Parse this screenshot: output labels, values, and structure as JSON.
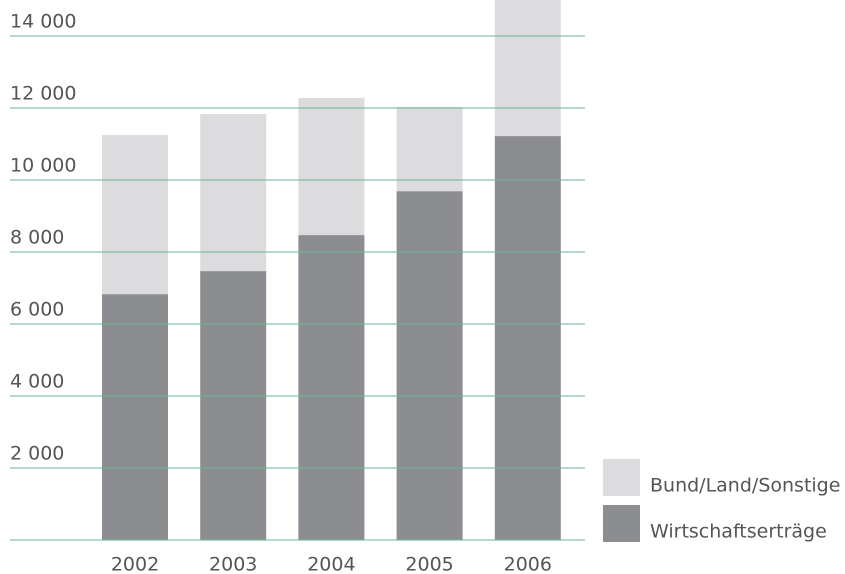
{
  "chart_data": {
    "type": "stacked_bar",
    "categories": [
      "2002",
      "2003",
      "2004",
      "2005",
      "2006"
    ],
    "series": [
      {
        "name": "Wirtschaftserträge",
        "color": "#8c8d91",
        "values": [
          6830,
          7470,
          8470,
          9690,
          11220
        ]
      },
      {
        "name": "Bund/Land/Sonstige",
        "color": "#dcdcdf",
        "values": [
          4420,
          4360,
          3810,
          2340,
          3900
        ]
      }
    ],
    "ylim": [
      0,
      15000
    ],
    "yticks": [
      {
        "value": 2000,
        "label": "2 000"
      },
      {
        "value": 4000,
        "label": "4 000"
      },
      {
        "value": 6000,
        "label": "6 000"
      },
      {
        "value": 8000,
        "label": "8 000"
      },
      {
        "value": 10000,
        "label": "10 000"
      },
      {
        "value": 12000,
        "label": "12 000"
      },
      {
        "value": 14000,
        "label": "14 000"
      }
    ],
    "grid": true,
    "grid_color": "#6ab594"
  }
}
